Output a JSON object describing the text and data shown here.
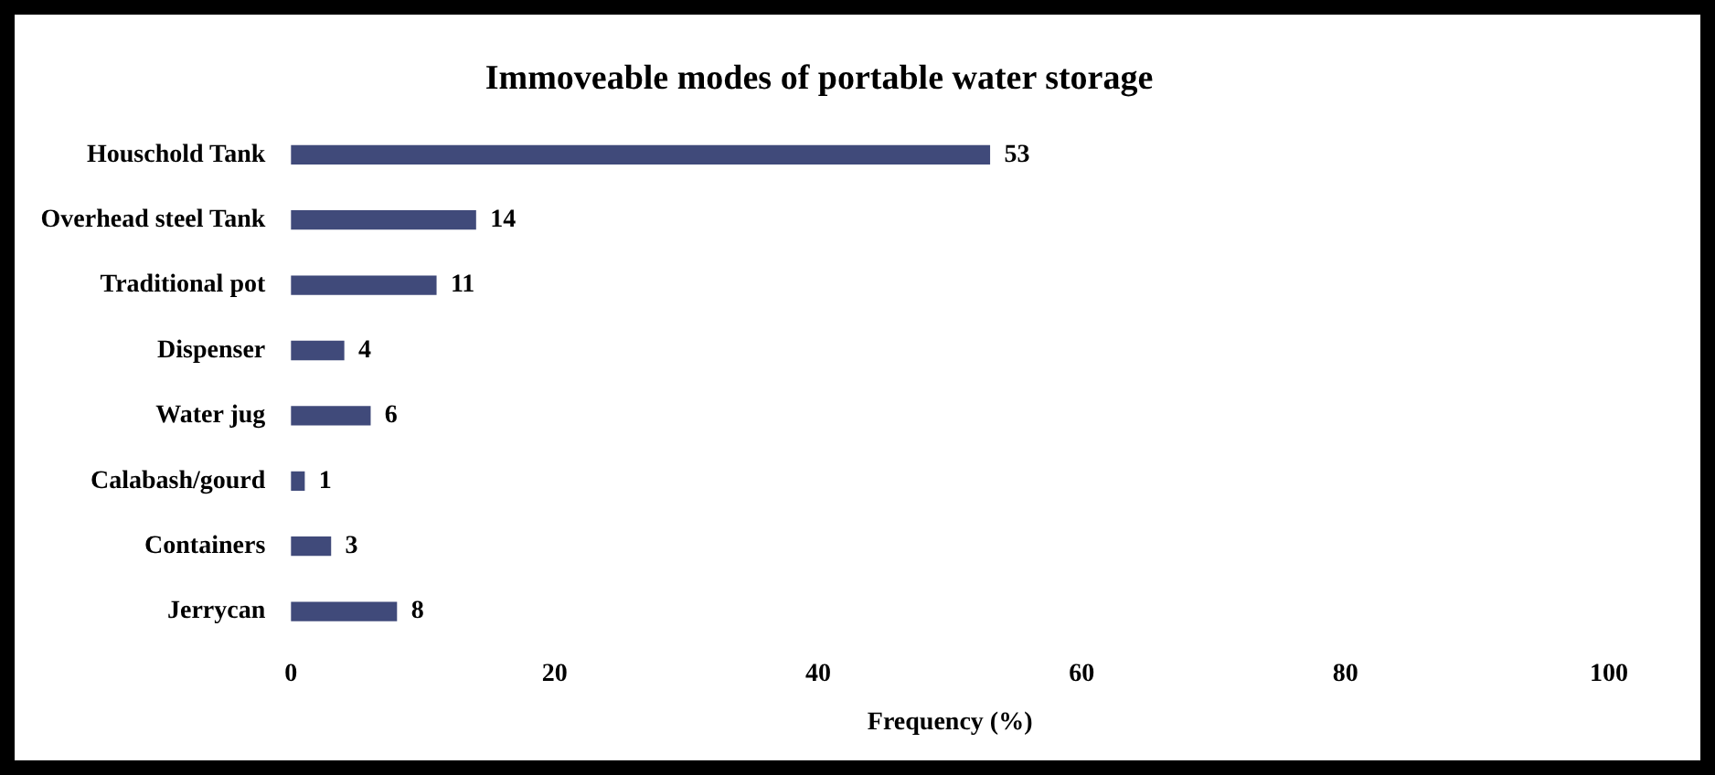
{
  "chart_data": {
    "type": "bar",
    "orientation": "horizontal",
    "title": "Immoveable modes of portable water storage",
    "xlabel": "Frequency (%)",
    "categories": [
      "Houschold Tank",
      "Overhead steel Tank",
      "Traditional pot",
      "Dispenser",
      "Water jug",
      "Calabash/gourd",
      "Containers",
      "Jerrycan"
    ],
    "values": [
      53,
      14,
      11,
      4,
      6,
      1,
      3,
      8
    ],
    "color": "#404a7a",
    "xlim": [
      0,
      100
    ],
    "xticks": [
      0,
      20,
      40,
      60,
      80,
      100
    ],
    "grid": false,
    "legend": false,
    "data_labels": true
  }
}
